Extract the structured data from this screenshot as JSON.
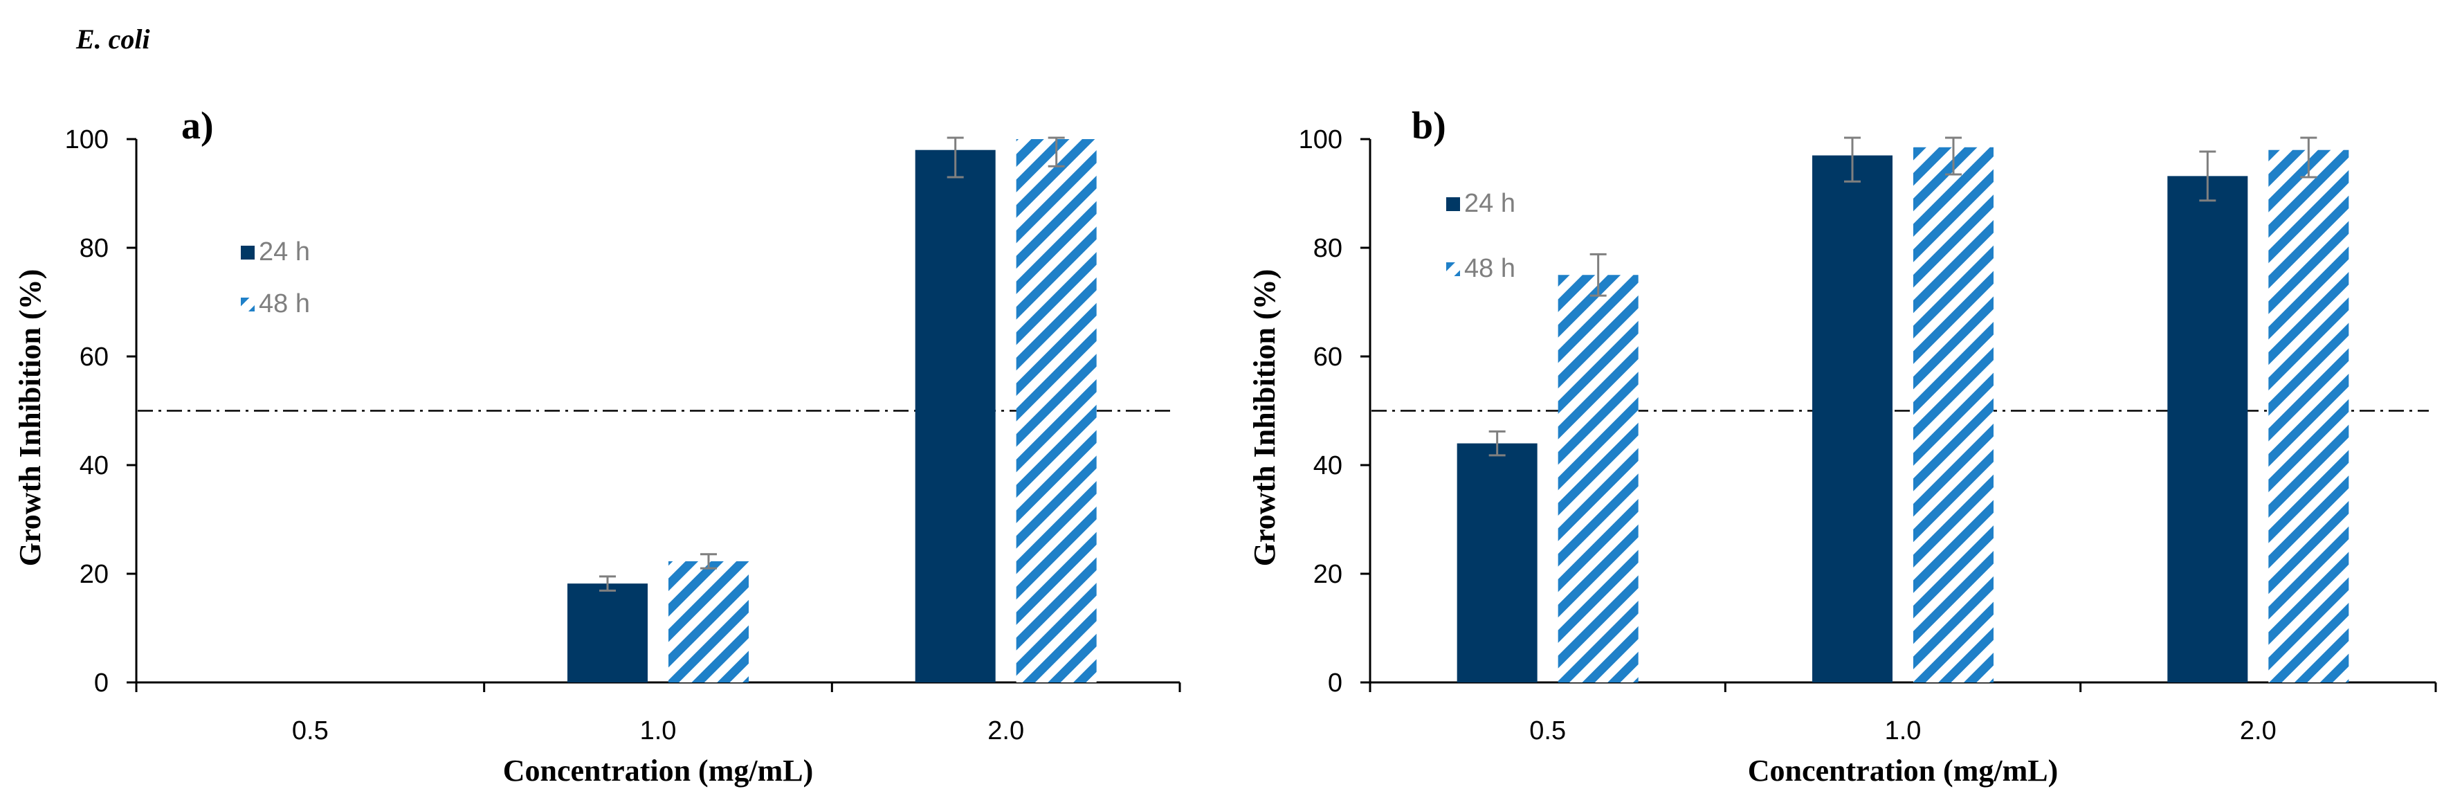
{
  "figure_title": "E. coli",
  "colors": {
    "series_24h": "#003865",
    "series_48h": "#1f80c8",
    "error_bar": "#7f7f7f",
    "axis": "#000000",
    "threshold": "#000000"
  },
  "chart_data": [
    {
      "type": "bar",
      "panel_label": "a)",
      "categories": [
        "0.5",
        "1.0",
        "2.0"
      ],
      "xlabel": "Concentration (mg/mL)",
      "ylabel": "Growth Inhibition (%)",
      "ylim": [
        0,
        100
      ],
      "yticks": [
        "0",
        "20",
        "40",
        "60",
        "80",
        "100"
      ],
      "legend_position": "upper-left",
      "threshold": 50,
      "series": [
        {
          "name": "24 h",
          "pattern": "solid",
          "values": [
            null,
            18.2,
            98.0
          ],
          "errors": [
            null,
            1.3,
            5.0
          ]
        },
        {
          "name": "48 h",
          "pattern": "hatched",
          "values": [
            null,
            22.3,
            100.0
          ],
          "errors": [
            null,
            1.3,
            5.0
          ]
        }
      ]
    },
    {
      "type": "bar",
      "panel_label": "b)",
      "categories": [
        "0.5",
        "1.0",
        "2.0"
      ],
      "xlabel": "Concentration (mg/mL)",
      "ylabel": "Growth Inhibition (%)",
      "ylim": [
        0,
        100
      ],
      "yticks": [
        "0",
        "20",
        "40",
        "60",
        "80",
        "100"
      ],
      "legend_position": "upper-left",
      "threshold": 50,
      "series": [
        {
          "name": "24 h",
          "pattern": "solid",
          "values": [
            44.0,
            97.0,
            93.2
          ],
          "errors": [
            2.2,
            4.8,
            4.5
          ]
        },
        {
          "name": "48 h",
          "pattern": "hatched",
          "values": [
            75.0,
            98.5,
            98.0
          ],
          "errors": [
            3.8,
            5.0,
            5.0
          ]
        }
      ]
    }
  ]
}
